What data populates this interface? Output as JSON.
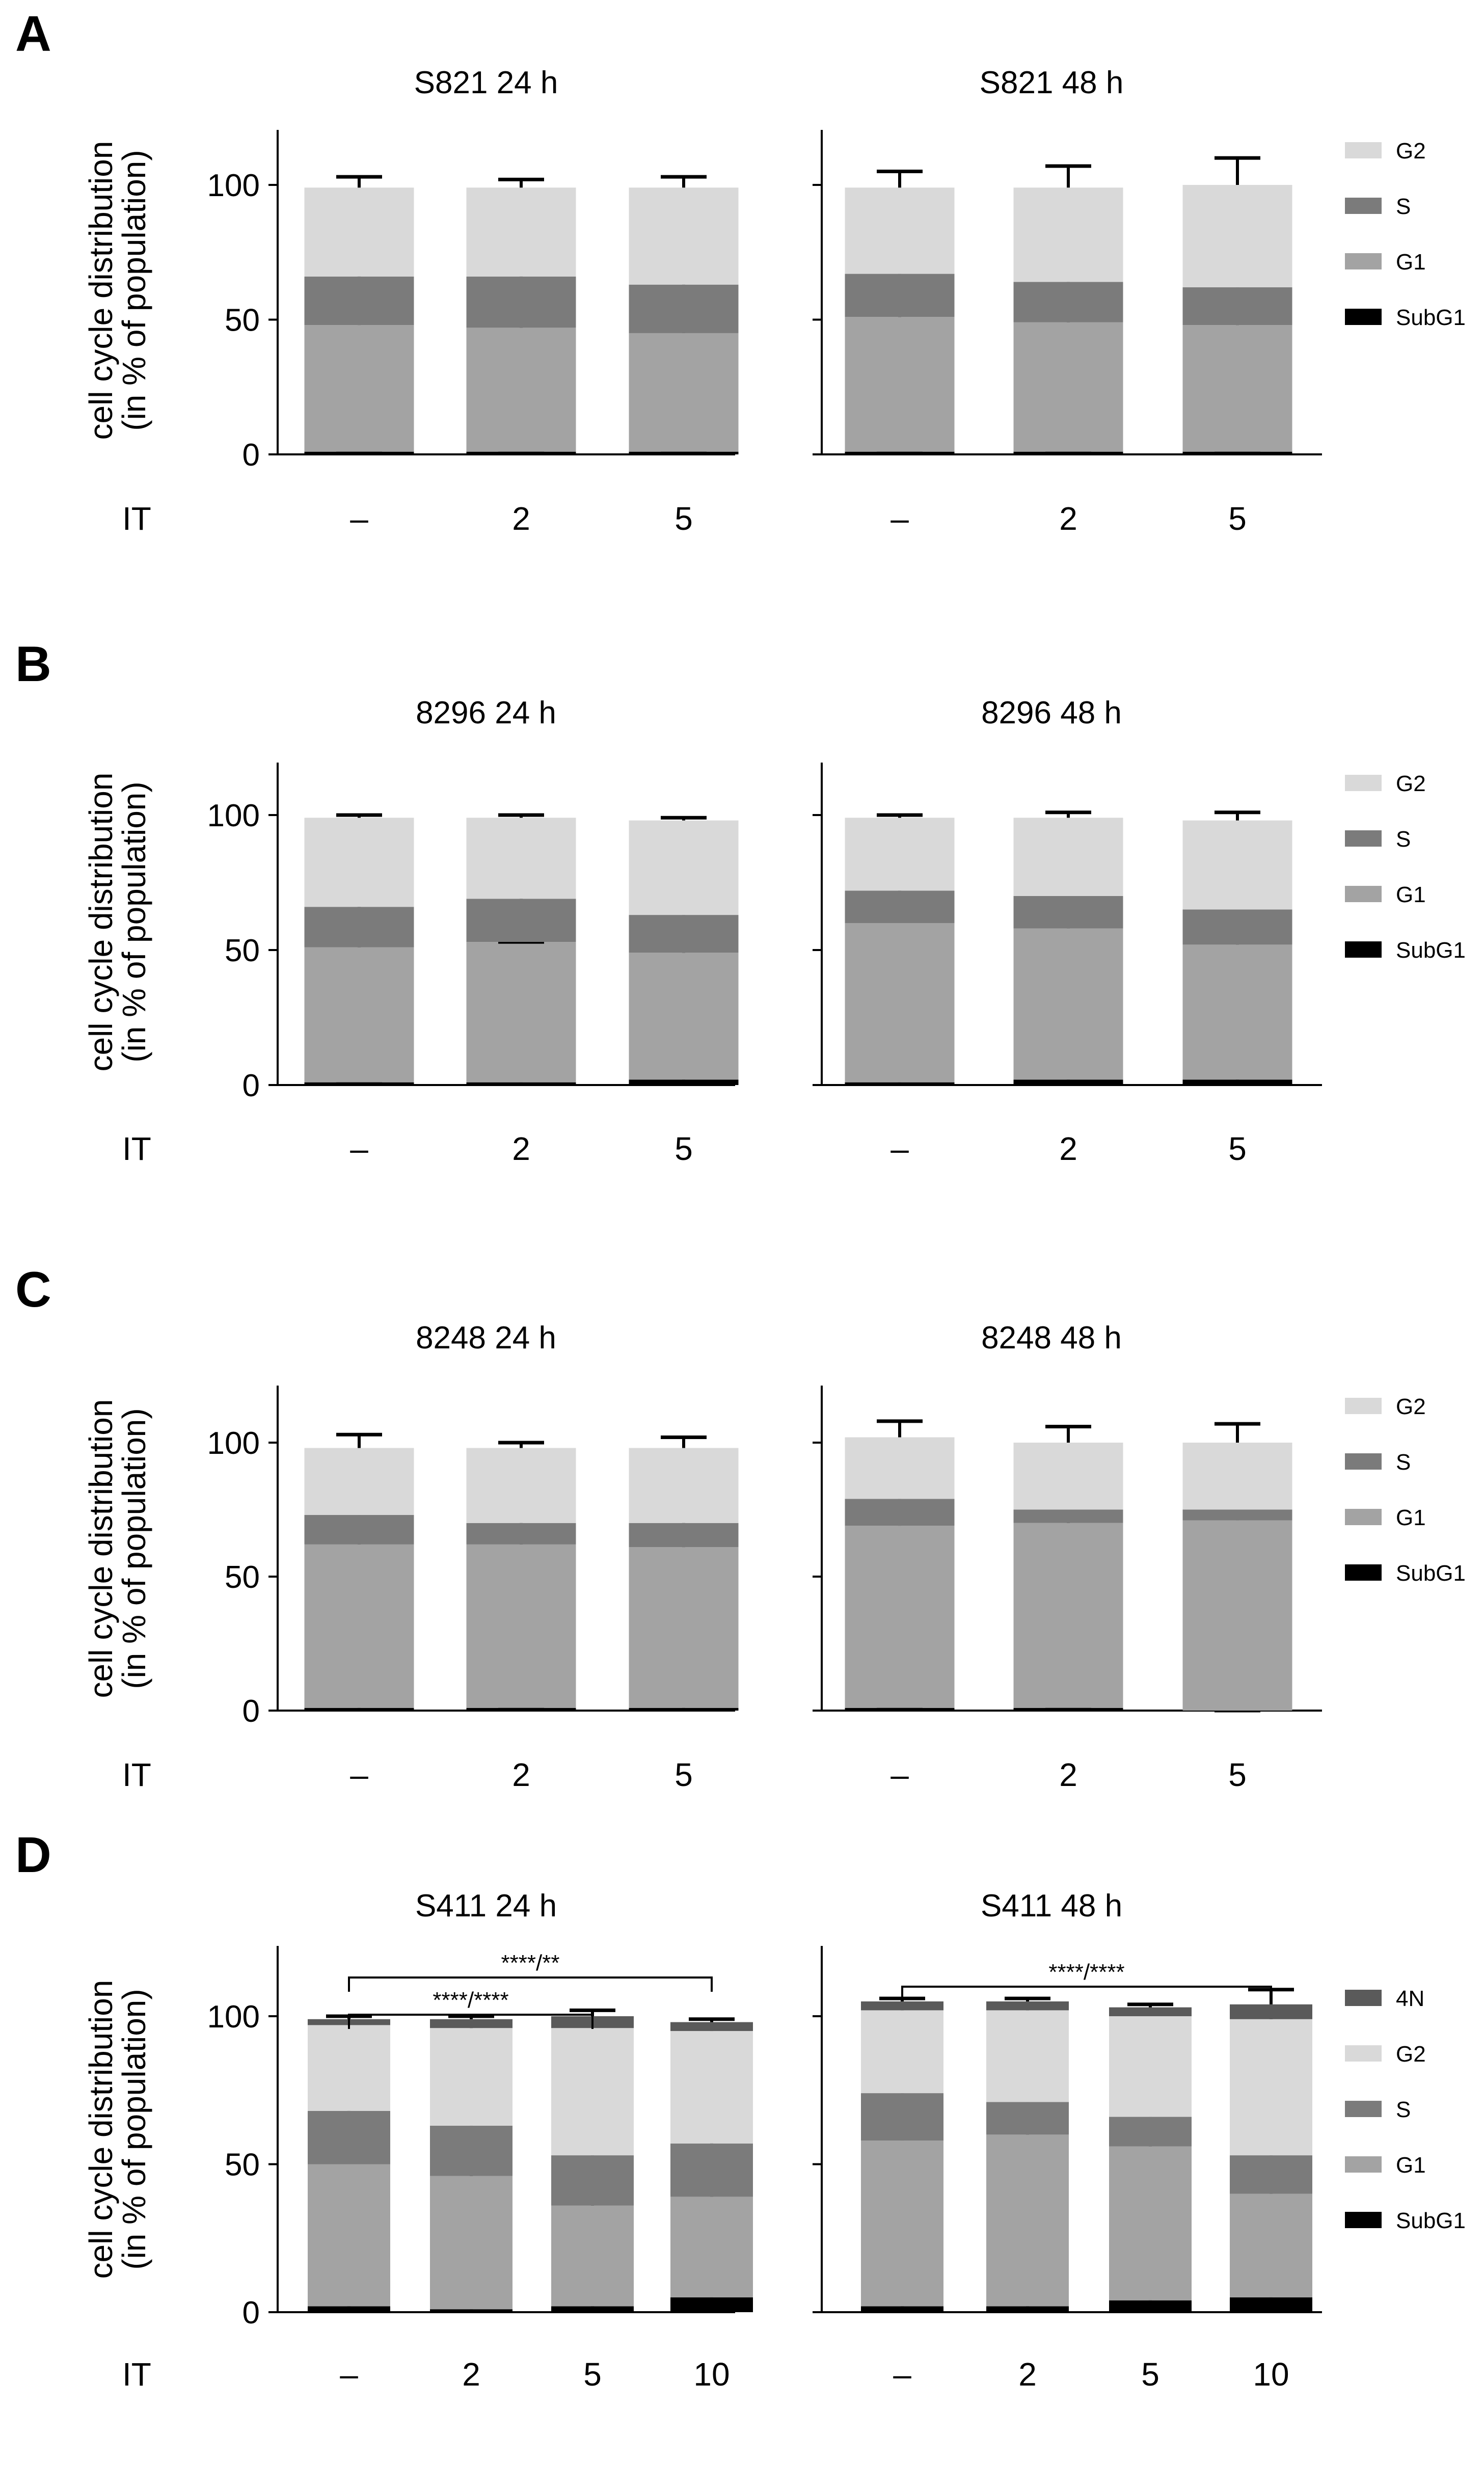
{
  "colors": {
    "G2": "#d9d9d9",
    "S": "#7b7b7b",
    "G1": "#a3a3a3",
    "SubG1": "#000000",
    "4N": "#5a5a5a",
    "axis": "#000000"
  },
  "labels": {
    "y_axis_line1": "cell cycle distribution",
    "y_axis_line2": "(in % of population)",
    "treatment_label": "IT"
  },
  "chart_data": [
    {
      "panel": "A",
      "type": "bar",
      "stacked": true,
      "legend": [
        "G2",
        "S",
        "G1",
        "SubG1"
      ],
      "ylim": [
        0,
        120
      ],
      "yticks": [
        "0",
        "50",
        "100"
      ],
      "subplots": [
        {
          "title": "S821 24 h",
          "categories": [
            "–",
            "2",
            "5"
          ],
          "series": [
            {
              "name": "SubG1",
              "values": [
                1,
                1,
                1
              ],
              "errors": [
                0,
                0,
                0
              ]
            },
            {
              "name": "G1",
              "values": [
                47,
                46,
                44
              ],
              "errors": [
                5,
                4,
                5
              ]
            },
            {
              "name": "S",
              "values": [
                18,
                19,
                18
              ],
              "errors": [
                3,
                2,
                3
              ]
            },
            {
              "name": "G2",
              "values": [
                33,
                33,
                36
              ],
              "errors": [
                4,
                3,
                4
              ]
            }
          ]
        },
        {
          "title": "S821 48 h",
          "categories": [
            "–",
            "2",
            "5"
          ],
          "series": [
            {
              "name": "SubG1",
              "values": [
                1,
                1,
                1
              ],
              "errors": [
                0,
                0,
                0
              ]
            },
            {
              "name": "G1",
              "values": [
                50,
                48,
                47
              ],
              "errors": [
                8,
                10,
                13
              ]
            },
            {
              "name": "S",
              "values": [
                16,
                15,
                14
              ],
              "errors": [
                7,
                5,
                5
              ]
            },
            {
              "name": "G2",
              "values": [
                32,
                35,
                38
              ],
              "errors": [
                6,
                8,
                10
              ]
            }
          ]
        }
      ]
    },
    {
      "panel": "B",
      "type": "bar",
      "stacked": true,
      "legend": [
        "G2",
        "S",
        "G1",
        "SubG1"
      ],
      "ylim": [
        0,
        120
      ],
      "yticks": [
        "0",
        "50",
        "100"
      ],
      "subplots": [
        {
          "title": "8296 24 h",
          "categories": [
            "–",
            "2",
            "5"
          ],
          "series": [
            {
              "name": "SubG1",
              "values": [
                1,
                1,
                2
              ],
              "errors": [
                0,
                1,
                1
              ]
            },
            {
              "name": "G1",
              "values": [
                50,
                52,
                47
              ],
              "errors": [
                1,
                0,
                2
              ]
            },
            {
              "name": "S",
              "values": [
                15,
                16,
                14
              ],
              "errors": [
                2,
                2,
                2
              ]
            },
            {
              "name": "G2",
              "values": [
                33,
                30,
                35
              ],
              "errors": [
                1,
                1,
                1
              ]
            }
          ]
        },
        {
          "title": "8296 48 h",
          "categories": [
            "–",
            "2",
            "5"
          ],
          "series": [
            {
              "name": "SubG1",
              "values": [
                1,
                2,
                2
              ],
              "errors": [
                3,
                3,
                3
              ]
            },
            {
              "name": "G1",
              "values": [
                59,
                56,
                50
              ],
              "errors": [
                1,
                2,
                4
              ]
            },
            {
              "name": "S",
              "values": [
                12,
                12,
                13
              ],
              "errors": [
                4,
                3,
                6
              ]
            },
            {
              "name": "G2",
              "values": [
                27,
                29,
                33
              ],
              "errors": [
                1,
                2,
                3
              ]
            }
          ]
        }
      ]
    },
    {
      "panel": "C",
      "type": "bar",
      "stacked": true,
      "legend": [
        "G2",
        "S",
        "G1",
        "SubG1"
      ],
      "ylim": [
        0,
        120
      ],
      "yticks": [
        "0",
        "50",
        "100"
      ],
      "subplots": [
        {
          "title": "8248 24 h",
          "categories": [
            "–",
            "2",
            "5"
          ],
          "series": [
            {
              "name": "SubG1",
              "values": [
                1,
                1,
                1
              ],
              "errors": [
                1,
                0,
                1
              ]
            },
            {
              "name": "G1",
              "values": [
                61,
                61,
                60
              ],
              "errors": [
                5,
                3,
                5
              ]
            },
            {
              "name": "S",
              "values": [
                11,
                8,
                9
              ],
              "errors": [
                2,
                1,
                1
              ]
            },
            {
              "name": "G2",
              "values": [
                25,
                28,
                28
              ],
              "errors": [
                5,
                2,
                4
              ]
            }
          ]
        },
        {
          "title": "8248 48 h",
          "categories": [
            "–",
            "2",
            "5"
          ],
          "series": [
            {
              "name": "SubG1",
              "values": [
                1,
                1,
                0
              ],
              "errors": [
                0,
                0,
                0
              ]
            },
            {
              "name": "G1",
              "values": [
                68,
                69,
                71
              ],
              "errors": [
                6,
                3,
                3
              ]
            },
            {
              "name": "S",
              "values": [
                10,
                5,
                4
              ],
              "errors": [
                5,
                2,
                2
              ]
            },
            {
              "name": "G2",
              "values": [
                23,
                25,
                25
              ],
              "errors": [
                6,
                6,
                7
              ]
            }
          ]
        }
      ]
    },
    {
      "panel": "D",
      "type": "bar",
      "stacked": true,
      "legend": [
        "4N",
        "G2",
        "S",
        "G1",
        "SubG1"
      ],
      "ylim": [
        0,
        125
      ],
      "yticks": [
        "0",
        "50",
        "100"
      ],
      "subplots": [
        {
          "title": "S411 24 h",
          "categories": [
            "–",
            "2",
            "5",
            "10"
          ],
          "series": [
            {
              "name": "SubG1",
              "values": [
                2,
                1,
                2,
                5
              ],
              "errors": [
                2,
                1,
                1,
                5
              ]
            },
            {
              "name": "G1",
              "values": [
                48,
                45,
                34,
                34
              ],
              "errors": [
                2,
                2,
                5,
                2
              ]
            },
            {
              "name": "S",
              "values": [
                18,
                17,
                17,
                18
              ],
              "errors": [
                2,
                3,
                4,
                4
              ]
            },
            {
              "name": "G2",
              "values": [
                29,
                33,
                43,
                38
              ],
              "errors": [
                1,
                1,
                3,
                1
              ]
            },
            {
              "name": "4N",
              "values": [
                2,
                3,
                4,
                3
              ],
              "errors": [
                1,
                1,
                2,
                1
              ]
            }
          ],
          "significance": [
            {
              "from": 0,
              "to": 3,
              "label": "****/**"
            },
            {
              "from": 0,
              "to": 2,
              "label": "****/****"
            }
          ]
        },
        {
          "title": "S411 48 h",
          "categories": [
            "–",
            "2",
            "5",
            "10"
          ],
          "series": [
            {
              "name": "SubG1",
              "values": [
                2,
                2,
                4,
                5
              ],
              "errors": [
                1,
                1,
                1,
                1
              ]
            },
            {
              "name": "G1",
              "values": [
                56,
                58,
                52,
                35
              ],
              "errors": [
                4,
                5,
                4,
                7
              ]
            },
            {
              "name": "S",
              "values": [
                16,
                11,
                10,
                13
              ],
              "errors": [
                3,
                4,
                2,
                3
              ]
            },
            {
              "name": "G2",
              "values": [
                28,
                31,
                34,
                46
              ],
              "errors": [
                1,
                1,
                1,
                2
              ]
            },
            {
              "name": "4N",
              "values": [
                3,
                3,
                3,
                5
              ],
              "errors": [
                1,
                1,
                1,
                5
              ]
            }
          ],
          "significance": [
            {
              "from": 0,
              "to": 3,
              "label": "****/****"
            }
          ]
        }
      ]
    }
  ]
}
